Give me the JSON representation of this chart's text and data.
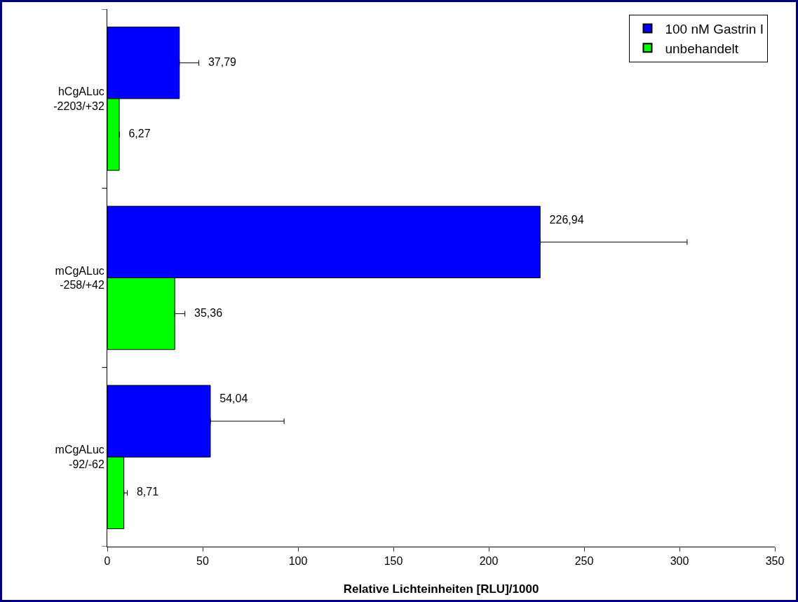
{
  "chart_data": {
    "type": "bar",
    "orientation": "horizontal",
    "categories": [
      "hCgALuc\n-2203/+32",
      "mCgALuc\n-258/+42",
      "mCgALuc\n-92/-62"
    ],
    "series": [
      {
        "name": "100 nM Gastrin I",
        "color": "#0000ff",
        "values": [
          37.79,
          226.94,
          54.04
        ],
        "value_labels": [
          "37,79",
          "226,94",
          "54,04"
        ],
        "errors": [
          [
            37.79,
            48
          ],
          [
            226.94,
            304
          ],
          [
            54.04,
            92.7
          ]
        ]
      },
      {
        "name": "unbehandelt",
        "color": "#00ff00",
        "values": [
          6.27,
          35.36,
          8.71
        ],
        "value_labels": [
          "6,27",
          "35,36",
          "8,71"
        ],
        "errors": [
          null,
          [
            35.36,
            40.7
          ],
          [
            8.71,
            10.5
          ]
        ]
      }
    ],
    "xlabel": "Relative Lichteinheiten [RLU]/1000",
    "xlim": [
      0,
      350
    ],
    "xticks": [
      0,
      50,
      100,
      150,
      200,
      250,
      300,
      350
    ],
    "grid": false,
    "legend": "top right"
  }
}
